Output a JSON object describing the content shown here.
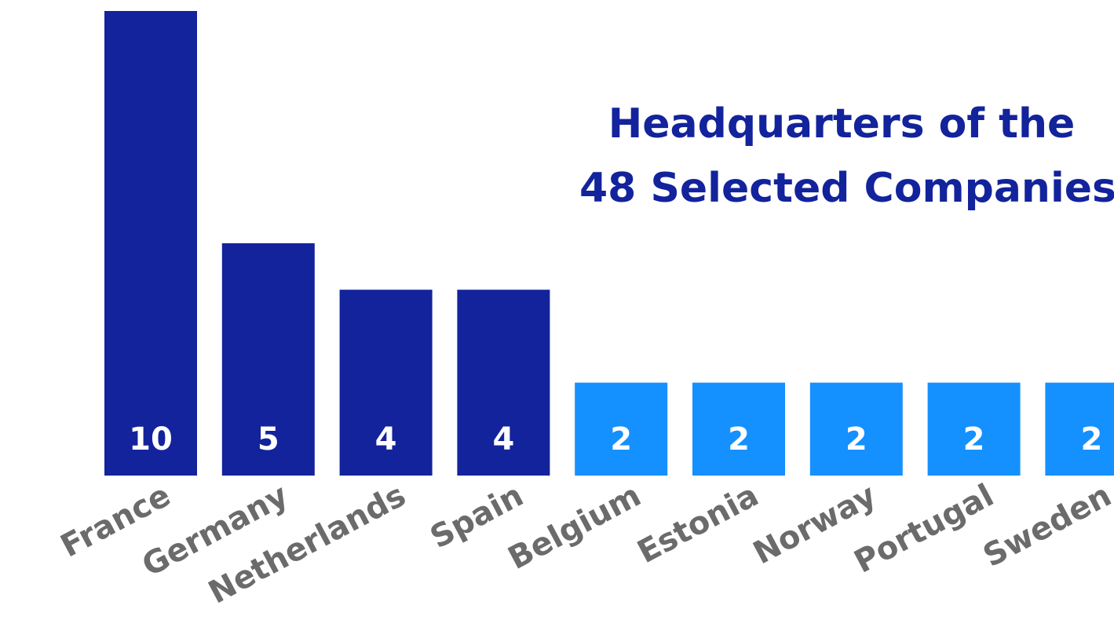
{
  "chart_data": {
    "type": "bar",
    "title_lines": [
      "Headquarters of the",
      "48 Selected Companies"
    ],
    "categories": [
      "France",
      "Germany",
      "Netherlands",
      "Spain",
      "Belgium",
      "Estonia",
      "Norway",
      "Portugal",
      "Sweden"
    ],
    "values": [
      10,
      5,
      4,
      4,
      2,
      2,
      2,
      2,
      2
    ],
    "value_labels": [
      "10",
      "5",
      "4",
      "4",
      "2",
      "2",
      "2",
      "2",
      "2"
    ],
    "colors": [
      "#13239c",
      "#13239c",
      "#13239c",
      "#13239c",
      "#1590ff",
      "#1590ff",
      "#1590ff",
      "#1590ff",
      "#1590ff"
    ],
    "title_color": "#13239c",
    "label_color": "#6b6b6b",
    "ylim": [
      0,
      10
    ],
    "grid": false,
    "legend": "none"
  }
}
